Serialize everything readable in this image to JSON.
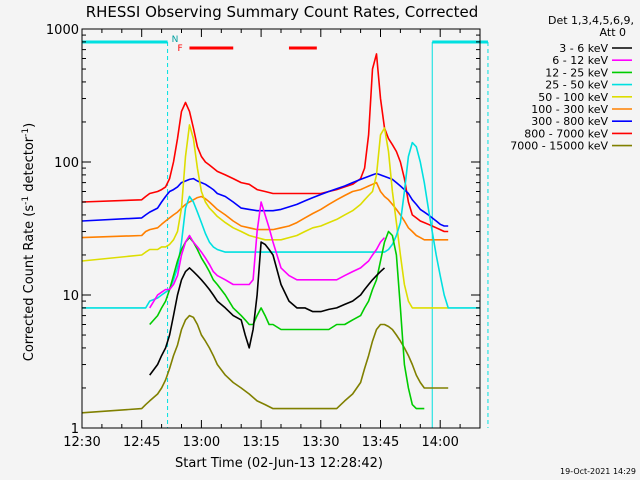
{
  "chart_data": {
    "type": "line",
    "title": "RHESSI Observing Summary Count Rates, Corrected",
    "xlabel": "Start Time (02-Jun-13 12:28:42)",
    "ylabel": "Corrected Count Rate (s",
    "ylabel_sup1": "-1",
    "ylabel_mid": " detector",
    "ylabel_sup2": "-1",
    "ylabel_end": ")",
    "y_scale": "log",
    "ylim": [
      1,
      1000
    ],
    "xlim_min": [
      0,
      100
    ],
    "x_tick_labels": [
      "12:30",
      "12:45",
      "13:00",
      "13:15",
      "13:30",
      "13:45",
      "14:00"
    ],
    "x_tick_min": [
      0,
      15,
      30,
      45,
      60,
      75,
      90
    ],
    "y_tick_labels": [
      "1",
      "10",
      "100",
      "1000"
    ],
    "y_tick_vals": [
      1,
      10,
      100,
      1000
    ],
    "legend_header": [
      "Det 1,3,4,5,6,9,",
      "Att 0"
    ],
    "legend_position": "right",
    "timestamp": "19-Oct-2021 14:29",
    "markers": {
      "night": "N",
      "flare": "F"
    },
    "series": [
      {
        "name": "3 - 6 keV",
        "color": "#000000",
        "x": [
          0,
          16,
          17,
          19,
          20,
          21,
          22,
          23,
          24,
          25,
          26,
          27,
          28,
          29,
          30,
          31,
          32,
          33,
          34,
          36,
          38,
          40,
          41,
          42,
          43,
          44,
          45,
          46,
          47,
          48,
          50,
          52,
          54,
          56,
          58,
          60,
          62,
          64,
          66,
          68,
          70,
          71,
          72,
          73,
          74,
          75,
          76,
          76.5
        ],
        "y": [
          null,
          null,
          2.5,
          3,
          3.5,
          4,
          5,
          7,
          10,
          13,
          15,
          16,
          15,
          14,
          13,
          12,
          11,
          10,
          9,
          8,
          7,
          6.5,
          5,
          4,
          5.5,
          10,
          25,
          24,
          22,
          20,
          12,
          9,
          8,
          8,
          7.5,
          7.5,
          7.8,
          8,
          8.5,
          9,
          10,
          11,
          12,
          13,
          14,
          15,
          16,
          null
        ]
      },
      {
        "name": "6 - 12 keV",
        "color": "#ff00ff",
        "x": [
          0,
          16,
          17,
          19,
          20,
          21,
          22,
          23,
          24,
          25,
          26,
          27,
          28,
          29,
          30,
          31,
          32,
          33,
          34,
          36,
          38,
          40,
          41,
          42,
          43,
          44,
          45,
          46,
          47,
          48,
          50,
          52,
          54,
          56,
          58,
          60,
          62,
          64,
          66,
          68,
          70,
          71,
          72,
          73,
          74,
          75,
          76,
          76.5
        ],
        "y": [
          null,
          null,
          8,
          10,
          10.5,
          11,
          11,
          12,
          14,
          20,
          25,
          28,
          25,
          23,
          21,
          19,
          17,
          15,
          14,
          13,
          12,
          12,
          12,
          12,
          13,
          30,
          50,
          40,
          32,
          25,
          16,
          14,
          13,
          13,
          13,
          13,
          13,
          13,
          14,
          15,
          16,
          17,
          18,
          20,
          22,
          25,
          27,
          null
        ]
      },
      {
        "name": "12 - 25 keV",
        "color": "#00cc00",
        "x": [
          0,
          16,
          17,
          19,
          20,
          21,
          22,
          23,
          24,
          25,
          26,
          27,
          28,
          29,
          30,
          31,
          32,
          33,
          34,
          36,
          38,
          40,
          41,
          42,
          43,
          44,
          45,
          46,
          47,
          48,
          50,
          52,
          54,
          56,
          58,
          60,
          62,
          64,
          66,
          68,
          70,
          71,
          72,
          73,
          74,
          75,
          76,
          77,
          78,
          79,
          80,
          81,
          82,
          83,
          84,
          85,
          86
        ],
        "y": [
          null,
          null,
          6,
          7,
          8,
          9,
          11,
          14,
          18,
          22,
          25,
          27,
          25,
          22,
          19,
          17,
          15,
          13,
          12,
          10,
          8,
          7,
          6.5,
          6,
          6,
          7,
          8,
          7,
          6,
          6,
          5.5,
          5.5,
          5.5,
          5.5,
          5.5,
          5.5,
          5.5,
          6,
          6,
          6.5,
          7,
          8,
          9,
          11,
          13,
          18,
          25,
          30,
          28,
          20,
          8,
          3,
          2,
          1.5,
          1.4,
          1.4,
          1.4
        ]
      },
      {
        "name": "25 - 50 keV",
        "color": "#00e0e0",
        "x": [
          0,
          1,
          3,
          6,
          9,
          12,
          15,
          16,
          17,
          19,
          20,
          21,
          22,
          23,
          24,
          25,
          26,
          27,
          28,
          29,
          30,
          31,
          32,
          33,
          34,
          36,
          38,
          40,
          42,
          44,
          46,
          48,
          50,
          52,
          54,
          56,
          58,
          60,
          62,
          64,
          66,
          68,
          70,
          71,
          72,
          73,
          74,
          75,
          76,
          77,
          78,
          79,
          80,
          81,
          82,
          83,
          84,
          85,
          86,
          87,
          88,
          89,
          90,
          91,
          92,
          93,
          94,
          95,
          96,
          97,
          98,
          99,
          100,
          101,
          102,
          103,
          104,
          105,
          106
        ],
        "y": [
          8,
          8,
          8,
          8,
          8,
          8,
          8,
          8,
          9,
          9.5,
          10,
          10.5,
          11,
          13,
          16,
          25,
          45,
          55,
          50,
          42,
          35,
          29,
          25,
          23,
          22,
          21,
          21,
          21,
          21,
          21,
          21,
          21,
          21,
          21,
          21,
          21,
          21,
          21,
          21,
          21,
          21,
          21,
          21,
          21,
          21,
          21,
          21,
          21,
          21,
          22,
          24,
          28,
          35,
          60,
          110,
          140,
          130,
          100,
          70,
          45,
          30,
          20,
          14,
          10,
          8,
          8,
          8,
          8,
          8,
          8,
          8,
          8,
          8,
          8,
          8,
          8,
          8,
          8,
          8
        ]
      },
      {
        "name": "50 - 100 keV",
        "color": "#dddd00",
        "x": [
          0,
          15,
          16,
          17,
          19,
          20,
          21,
          22,
          23,
          24,
          25,
          26,
          27,
          28,
          29,
          30,
          31,
          32,
          33,
          34,
          36,
          38,
          40,
          42,
          44,
          46,
          48,
          50,
          52,
          54,
          56,
          58,
          60,
          62,
          64,
          66,
          68,
          70,
          71,
          72,
          73,
          74,
          75,
          76,
          77,
          78,
          79,
          80,
          81,
          82,
          83,
          84,
          85,
          86,
          87,
          88,
          89,
          90,
          91,
          92
        ],
        "y": [
          18,
          20,
          21,
          22,
          22,
          23,
          23,
          24,
          26,
          30,
          45,
          110,
          190,
          150,
          90,
          60,
          50,
          45,
          42,
          39,
          35,
          32,
          30,
          28,
          27,
          26,
          26,
          26,
          27,
          28,
          30,
          32,
          33,
          35,
          37,
          40,
          43,
          48,
          52,
          56,
          60,
          80,
          160,
          180,
          120,
          60,
          35,
          20,
          12,
          9,
          8,
          8,
          8,
          8,
          8,
          8,
          8,
          8,
          8,
          8
        ]
      },
      {
        "name": "100 - 300 keV",
        "color": "#ff8000",
        "x": [
          0,
          15,
          16,
          17,
          19,
          20,
          21,
          22,
          23,
          24,
          25,
          26,
          27,
          28,
          29,
          30,
          31,
          32,
          33,
          34,
          36,
          38,
          40,
          42,
          44,
          46,
          48,
          50,
          52,
          54,
          56,
          58,
          60,
          62,
          64,
          66,
          68,
          70,
          71,
          72,
          73,
          74,
          75,
          76,
          77,
          78,
          79,
          80,
          81,
          82,
          83,
          84,
          85,
          86,
          87,
          88,
          89,
          90,
          91,
          92
        ],
        "y": [
          27,
          28,
          30,
          31,
          32,
          34,
          36,
          38,
          40,
          42,
          45,
          48,
          50,
          52,
          54,
          55,
          53,
          50,
          47,
          44,
          40,
          36,
          33,
          32,
          31,
          31,
          31,
          32,
          33,
          35,
          38,
          41,
          44,
          48,
          52,
          56,
          60,
          62,
          64,
          66,
          68,
          70,
          60,
          55,
          52,
          48,
          44,
          40,
          36,
          32,
          30,
          28,
          27,
          26,
          26,
          26,
          26,
          26,
          26,
          26
        ]
      },
      {
        "name": "300 - 800 keV",
        "color": "#0000ff",
        "x": [
          0,
          15,
          16,
          17,
          19,
          20,
          21,
          22,
          23,
          24,
          25,
          26,
          27,
          28,
          29,
          30,
          31,
          32,
          33,
          34,
          36,
          38,
          40,
          42,
          44,
          46,
          48,
          50,
          52,
          54,
          56,
          58,
          60,
          62,
          64,
          66,
          68,
          70,
          71,
          72,
          73,
          74,
          75,
          76,
          77,
          78,
          79,
          80,
          81,
          82,
          83,
          84,
          85,
          86,
          87,
          88,
          89,
          90,
          91,
          92
        ],
        "y": [
          36,
          38,
          40,
          42,
          45,
          50,
          55,
          60,
          62,
          65,
          70,
          72,
          74,
          75,
          72,
          70,
          68,
          65,
          62,
          58,
          55,
          50,
          45,
          44,
          43,
          43,
          43,
          44,
          46,
          48,
          51,
          54,
          57,
          60,
          63,
          66,
          70,
          74,
          76,
          78,
          80,
          82,
          80,
          78,
          76,
          74,
          70,
          66,
          62,
          58,
          52,
          48,
          44,
          42,
          40,
          38,
          36,
          34,
          33,
          33
        ]
      },
      {
        "name": "800 - 7000 keV",
        "color": "#ff0000",
        "x": [
          0,
          15,
          16,
          17,
          19,
          20,
          21,
          22,
          23,
          24,
          25,
          26,
          27,
          28,
          29,
          30,
          31,
          32,
          33,
          34,
          36,
          38,
          40,
          42,
          44,
          46,
          48,
          50,
          52,
          54,
          56,
          58,
          60,
          62,
          64,
          66,
          68,
          70,
          71,
          72,
          73,
          74,
          75,
          76,
          77,
          78,
          79,
          80,
          81,
          82,
          83,
          84,
          85,
          86,
          87,
          88,
          89,
          90,
          91,
          92
        ],
        "y": [
          50,
          52,
          55,
          58,
          60,
          62,
          65,
          75,
          100,
          150,
          240,
          280,
          240,
          180,
          130,
          110,
          100,
          95,
          90,
          85,
          80,
          75,
          70,
          68,
          62,
          60,
          58,
          58,
          58,
          58,
          58,
          58,
          58,
          60,
          62,
          65,
          68,
          75,
          90,
          160,
          500,
          650,
          300,
          180,
          150,
          135,
          120,
          100,
          75,
          50,
          40,
          38,
          36,
          35,
          34,
          33,
          32,
          31,
          30,
          30
        ]
      },
      {
        "name": "7000 - 15000 keV",
        "color": "#808000",
        "x": [
          0,
          15,
          16,
          17,
          19,
          20,
          21,
          22,
          23,
          24,
          25,
          26,
          27,
          28,
          29,
          30,
          31,
          32,
          33,
          34,
          36,
          38,
          40,
          42,
          44,
          46,
          48,
          50,
          52,
          54,
          56,
          58,
          60,
          62,
          64,
          66,
          68,
          70,
          71,
          72,
          73,
          74,
          75,
          76,
          77,
          78,
          79,
          80,
          81,
          82,
          83,
          84,
          85,
          86,
          87,
          88,
          89,
          90,
          91,
          92
        ],
        "y": [
          1.3,
          1.4,
          1.5,
          1.6,
          1.8,
          2.0,
          2.3,
          2.8,
          3.5,
          4.2,
          5.5,
          6.5,
          7.0,
          6.8,
          6.0,
          5.0,
          4.5,
          4.0,
          3.5,
          3.0,
          2.5,
          2.2,
          2.0,
          1.8,
          1.6,
          1.5,
          1.4,
          1.4,
          1.4,
          1.4,
          1.4,
          1.4,
          1.4,
          1.4,
          1.4,
          1.6,
          1.8,
          2.2,
          2.8,
          3.5,
          4.5,
          5.5,
          6.0,
          6.0,
          5.8,
          5.5,
          5.0,
          4.5,
          4.0,
          3.5,
          3.0,
          2.5,
          2.2,
          2.0,
          2.0,
          2.0,
          2.0,
          2.0,
          2.0,
          2.0
        ]
      }
    ],
    "night_spans_min": [
      [
        0,
        21.5
      ],
      [
        88,
        102
      ]
    ],
    "flare_bars_min": [
      [
        27,
        38
      ],
      [
        52,
        59
      ]
    ]
  }
}
